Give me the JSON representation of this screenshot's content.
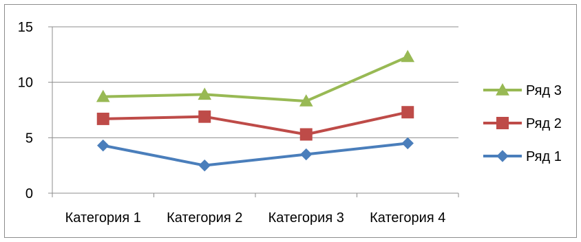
{
  "chart_data": {
    "type": "line",
    "title": "",
    "xlabel": "",
    "ylabel": "",
    "categories": [
      "Категория 1",
      "Категория 2",
      "Категория 3",
      "Категория 4"
    ],
    "yticks": [
      0,
      5,
      10,
      15
    ],
    "ylim": [
      0,
      15
    ],
    "grid": true,
    "legend_position": "right",
    "series": [
      {
        "name": "Ряд 1",
        "values": [
          4.3,
          2.5,
          3.5,
          4.5
        ],
        "color": "#4a7ebb",
        "marker": "diamond"
      },
      {
        "name": "Ряд 2",
        "values": [
          6.7,
          6.9,
          5.3,
          7.3
        ],
        "color": "#be4b48",
        "marker": "square"
      },
      {
        "name": "Ряд 3",
        "values": [
          8.7,
          8.9,
          8.3,
          12.3
        ],
        "color": "#98b954",
        "marker": "triangle"
      }
    ],
    "legend_order": [
      "Ряд 3",
      "Ряд 2",
      "Ряд 1"
    ]
  }
}
